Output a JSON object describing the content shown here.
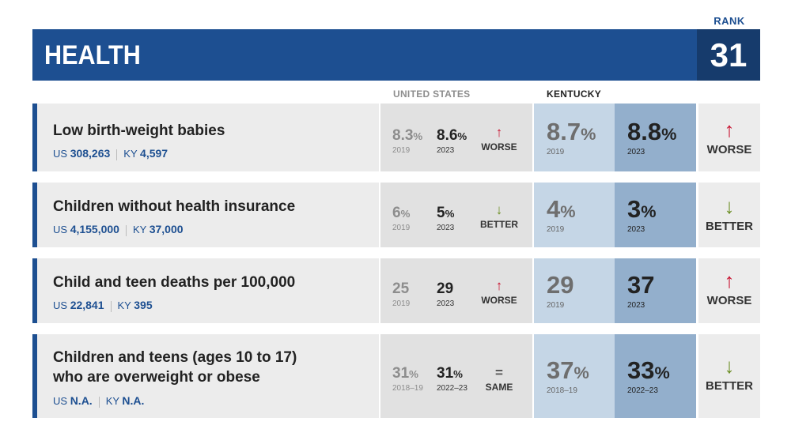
{
  "header": {
    "title": "HEALTH",
    "rank_label": "RANK",
    "rank_value": "31"
  },
  "columns": {
    "us": "UNITED STATES",
    "ky": "KENTUCKY"
  },
  "rows": [
    {
      "title_line1": "Low birth-weight babies",
      "title_line2": "",
      "us_label": "US",
      "us_count": "308,263",
      "ky_label": "KY",
      "ky_count": "4,597",
      "us_a_value": "8.3",
      "us_a_pct": "%",
      "us_a_year": "2019",
      "us_b_value": "8.6",
      "us_b_pct": "%",
      "us_b_year": "2023",
      "us_trend_arrow": "↑",
      "us_trend": "WORSE",
      "ky_a_value": "8.7",
      "ky_a_pct": "%",
      "ky_a_year": "2019",
      "ky_b_value": "8.8",
      "ky_b_pct": "%",
      "ky_b_year": "2023",
      "ky_trend_arrow": "↑",
      "ky_trend": "WORSE"
    },
    {
      "title_line1": "Children without health insurance",
      "title_line2": "",
      "us_label": "US",
      "us_count": "4,155,000",
      "ky_label": "KY",
      "ky_count": "37,000",
      "us_a_value": "6",
      "us_a_pct": "%",
      "us_a_year": "2019",
      "us_b_value": "5",
      "us_b_pct": "%",
      "us_b_year": "2023",
      "us_trend_arrow": "↓",
      "us_trend": "BETTER",
      "ky_a_value": "4",
      "ky_a_pct": "%",
      "ky_a_year": "2019",
      "ky_b_value": "3",
      "ky_b_pct": "%",
      "ky_b_year": "2023",
      "ky_trend_arrow": "↓",
      "ky_trend": "BETTER"
    },
    {
      "title_line1": "Child and teen deaths per 100,000",
      "title_line2": "",
      "us_label": "US",
      "us_count": "22,841",
      "ky_label": "KY",
      "ky_count": "395",
      "us_a_value": "25",
      "us_a_pct": "",
      "us_a_year": "2019",
      "us_b_value": "29",
      "us_b_pct": "",
      "us_b_year": "2023",
      "us_trend_arrow": "↑",
      "us_trend": "WORSE",
      "ky_a_value": "29",
      "ky_a_pct": "",
      "ky_a_year": "2019",
      "ky_b_value": "37",
      "ky_b_pct": "",
      "ky_b_year": "2023",
      "ky_trend_arrow": "↑",
      "ky_trend": "WORSE"
    },
    {
      "title_line1": "Children and teens (ages 10 to 17)",
      "title_line2": "who are overweight or obese",
      "us_label": "US",
      "us_count": "N.A.",
      "ky_label": "KY",
      "ky_count": "N.A.",
      "us_a_value": "31",
      "us_a_pct": "%",
      "us_a_year": "2018–19",
      "us_b_value": "31",
      "us_b_pct": "%",
      "us_b_year": "2022–23",
      "us_trend_arrow": "=",
      "us_trend": "SAME",
      "ky_a_value": "37",
      "ky_a_pct": "%",
      "ky_a_year": "2018–19",
      "ky_b_value": "33",
      "ky_b_pct": "%",
      "ky_b_year": "2022–23",
      "ky_trend_arrow": "↓",
      "ky_trend": "BETTER"
    }
  ]
}
